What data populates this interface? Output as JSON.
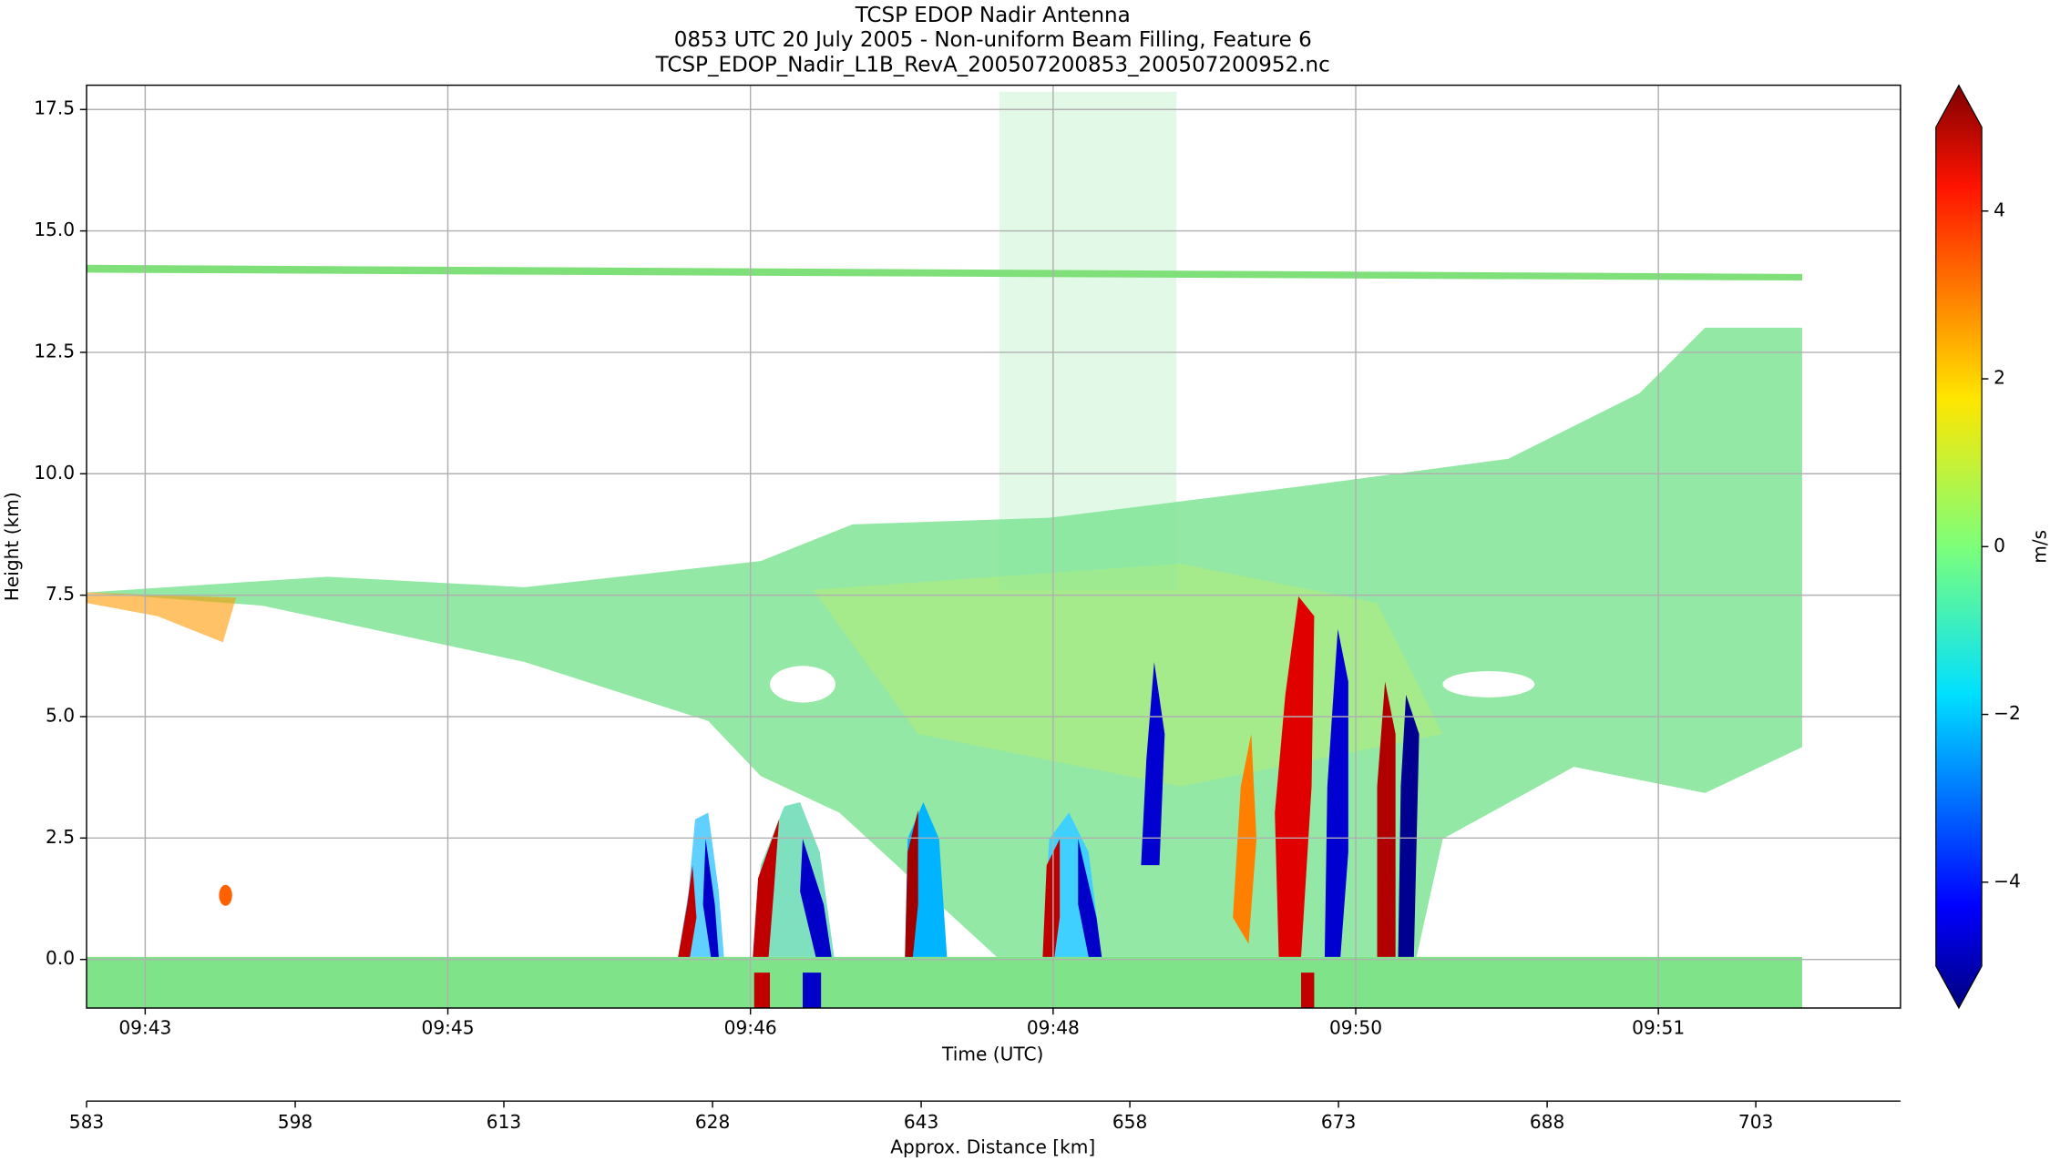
{
  "chart_data": {
    "type": "heatmap",
    "title": "TCSP EDOP Nadir Antenna",
    "subtitle": [
      "0853 UTC 20 July 2005 - Non-uniform Beam Filling, Feature 6",
      "TCSP_EDOP_Nadir_L1B_RevA_200507200853_200507200952.nc"
    ],
    "xlabel": "Time (UTC)",
    "ylabel": "Height (km)",
    "xlim": [
      42.69,
      52.28
    ],
    "xticks": [
      {
        "value": 43.0,
        "label": "09:43"
      },
      {
        "value": 44.6,
        "label": "09:45"
      },
      {
        "value": 46.2,
        "label": "09:46"
      },
      {
        "value": 47.8,
        "label": "09:48"
      },
      {
        "value": 49.4,
        "label": "09:50"
      },
      {
        "value": 51.0,
        "label": "09:51"
      }
    ],
    "ylim": [
      -1.0,
      18.0
    ],
    "yticks": [
      {
        "value": 0,
        "label": "0.0"
      },
      2.5,
      {
        "value": 5,
        "label": "5.0"
      },
      7.5,
      {
        "value": 10,
        "label": "10.0"
      },
      12.5,
      {
        "value": 15,
        "label": "15.0"
      },
      17.5
    ],
    "grid": true,
    "x2label": "Approx. Distance [km]",
    "x2lim": [
      583,
      713.4
    ],
    "x2ticks": [
      583,
      598,
      613,
      628,
      643,
      658,
      673,
      688,
      703
    ],
    "colorbar": {
      "label": "m/s",
      "lim": [
        -5,
        5
      ],
      "extend": "both",
      "ticks": [
        {
          "value": -4,
          "label": "−4"
        },
        {
          "value": -2,
          "label": "−2"
        },
        0,
        2,
        4
      ]
    }
  }
}
